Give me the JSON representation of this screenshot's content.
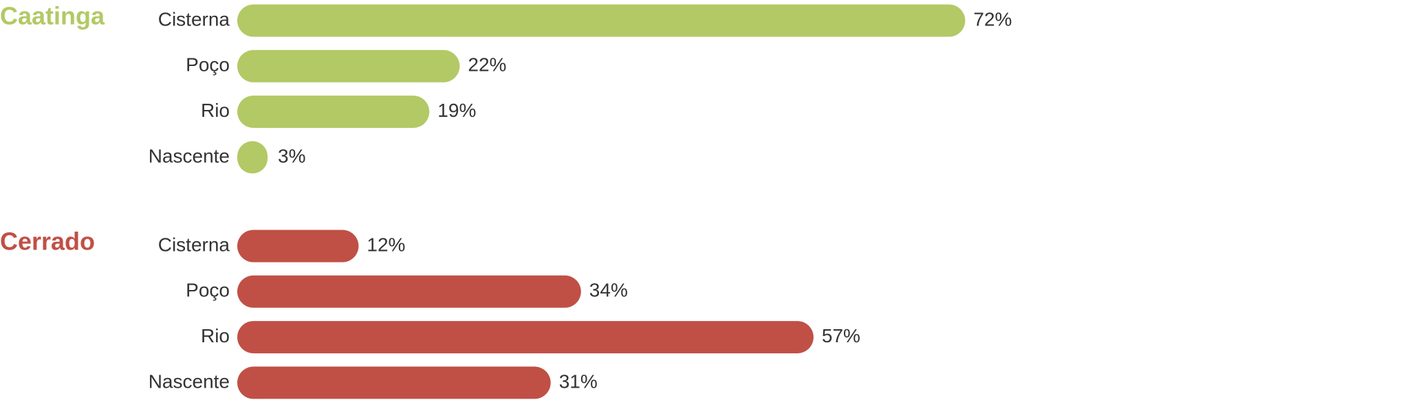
{
  "chart_data": [
    {
      "type": "bar",
      "title": "Caatinga",
      "categories": [
        "Cisterna",
        "Poço",
        "Rio",
        "Nascente"
      ],
      "values": [
        72,
        22,
        19,
        3
      ],
      "value_labels": [
        "72%",
        "22%",
        "19%",
        "3%"
      ],
      "color": "#b2c965"
    },
    {
      "type": "bar",
      "title": "Cerrado",
      "categories": [
        "Cisterna",
        "Poço",
        "Rio",
        "Nascente"
      ],
      "values": [
        12,
        34,
        57,
        31
      ],
      "value_labels": [
        "12%",
        "34%",
        "57%",
        "31%"
      ],
      "color": "#c05045"
    }
  ]
}
